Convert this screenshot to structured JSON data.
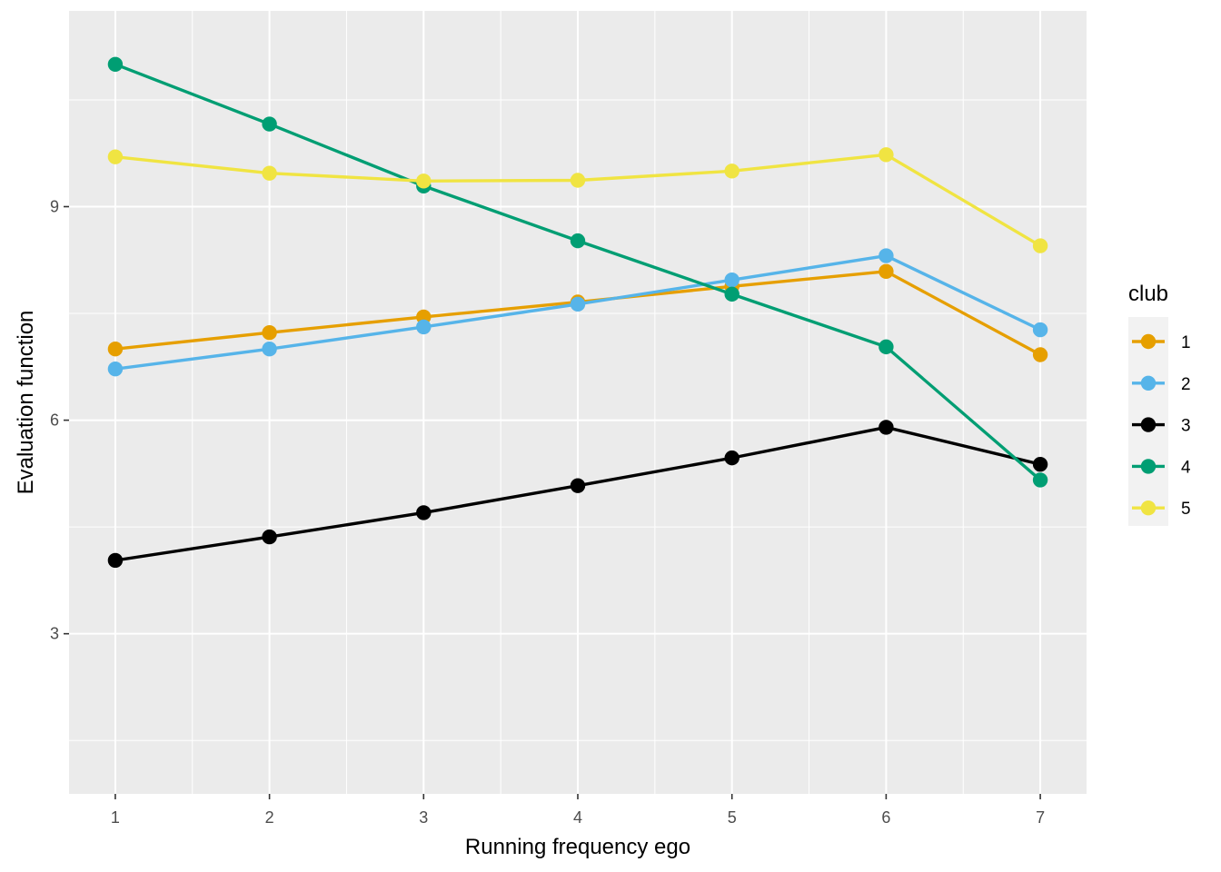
{
  "chart_data": {
    "type": "line",
    "xlabel": "Running frequency ego",
    "ylabel": "Evaluation function",
    "x": [
      1,
      2,
      3,
      4,
      5,
      6,
      7
    ],
    "x_ticks": [
      "1",
      "2",
      "3",
      "4",
      "5",
      "6",
      "7"
    ],
    "y_ticks": [
      "3",
      "6",
      "9"
    ],
    "xlim": [
      0.7,
      7.3
    ],
    "ylim": [
      0.75,
      11.75
    ],
    "grid": true,
    "panel_background": "#ebebeb",
    "legend": {
      "title": "club",
      "placement": "right"
    },
    "series": [
      {
        "name": "1",
        "color": "#E69F00",
        "values": [
          7.0,
          7.23,
          7.45,
          7.66,
          7.88,
          8.09,
          6.92
        ]
      },
      {
        "name": "2",
        "color": "#56B4E9",
        "values": [
          6.72,
          7.0,
          7.31,
          7.63,
          7.97,
          8.31,
          7.27
        ]
      },
      {
        "name": "3",
        "color": "#000000",
        "values": [
          4.03,
          4.36,
          4.7,
          5.08,
          5.47,
          5.9,
          5.38
        ]
      },
      {
        "name": "4",
        "color": "#009E73",
        "values": [
          11.0,
          10.16,
          9.29,
          8.52,
          7.77,
          7.03,
          5.16
        ]
      },
      {
        "name": "5",
        "color": "#F0E442",
        "values": [
          9.7,
          9.47,
          9.36,
          9.37,
          9.5,
          9.73,
          8.45
        ]
      }
    ]
  }
}
